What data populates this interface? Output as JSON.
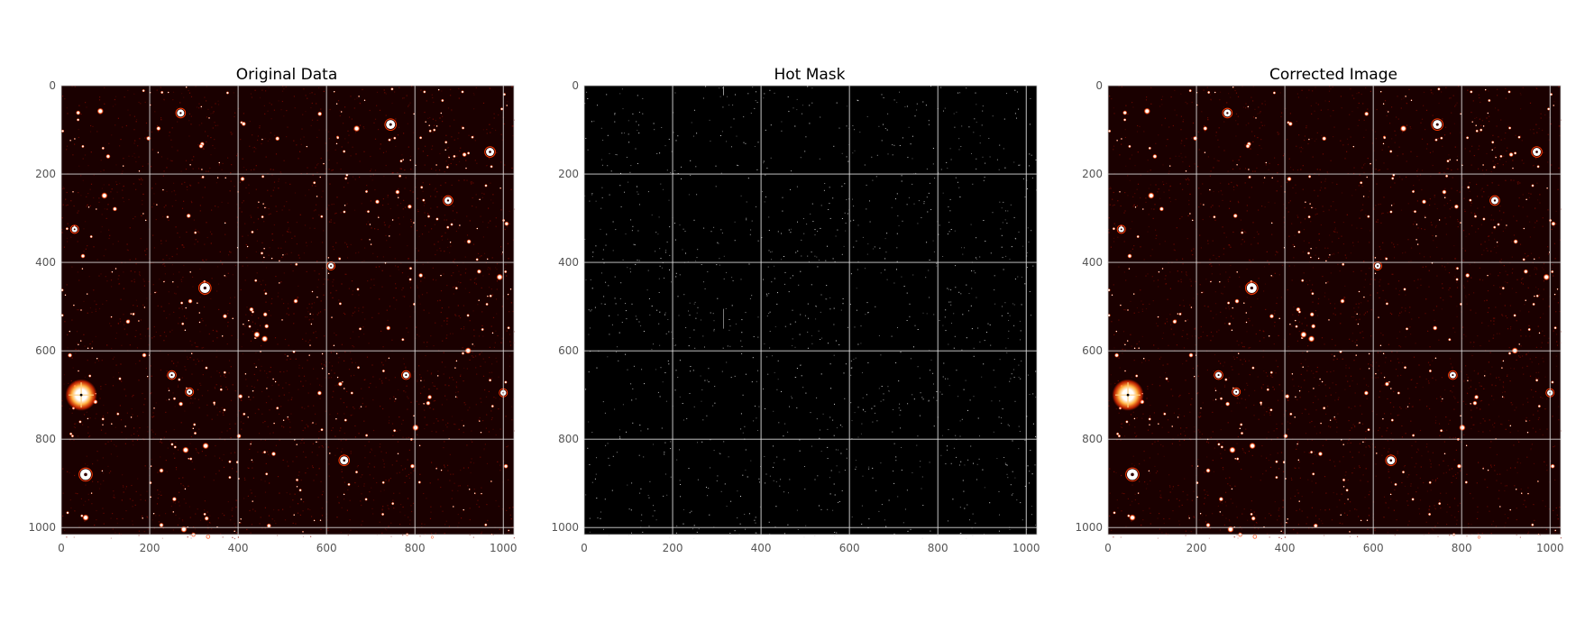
{
  "figure": {
    "panels": [
      {
        "id": "original",
        "title": "Original Data",
        "colormap": "hot",
        "icon": "star-field-image",
        "background": "#1a0000",
        "x_ticks": [
          "0",
          "200",
          "400",
          "600",
          "800",
          "1000"
        ],
        "y_ticks": [
          "0",
          "200",
          "400",
          "600",
          "800",
          "1000"
        ],
        "x_range": [
          0,
          1024
        ],
        "y_range": [
          1024,
          0
        ]
      },
      {
        "id": "hot-mask",
        "title": "Hot Mask",
        "colormap": "gray",
        "icon": "binary-mask-image",
        "background": "#000000",
        "x_ticks": [
          "0",
          "200",
          "400",
          "600",
          "800",
          "1000"
        ],
        "y_ticks": [
          "0",
          "200",
          "400",
          "600",
          "800",
          "1000"
        ],
        "x_range": [
          0,
          1024
        ],
        "y_range": [
          1024,
          0
        ]
      },
      {
        "id": "corrected",
        "title": "Corrected Image",
        "colormap": "hot",
        "icon": "star-field-image",
        "background": "#1a0000",
        "x_ticks": [
          "0",
          "200",
          "400",
          "600",
          "800",
          "1000"
        ],
        "y_ticks": [
          "0",
          "200",
          "400",
          "600",
          "800",
          "1000"
        ],
        "x_range": [
          0,
          1024
        ],
        "y_range": [
          1024,
          0
        ]
      }
    ],
    "grid": true,
    "colors": {
      "grid": "#d9d9d9",
      "tick": "#555555",
      "star_core": "#ffffff",
      "star_halo": "#ff4a10",
      "noise_warm": "#7a0a00",
      "mask_pixel": "#dcdcdc"
    }
  }
}
